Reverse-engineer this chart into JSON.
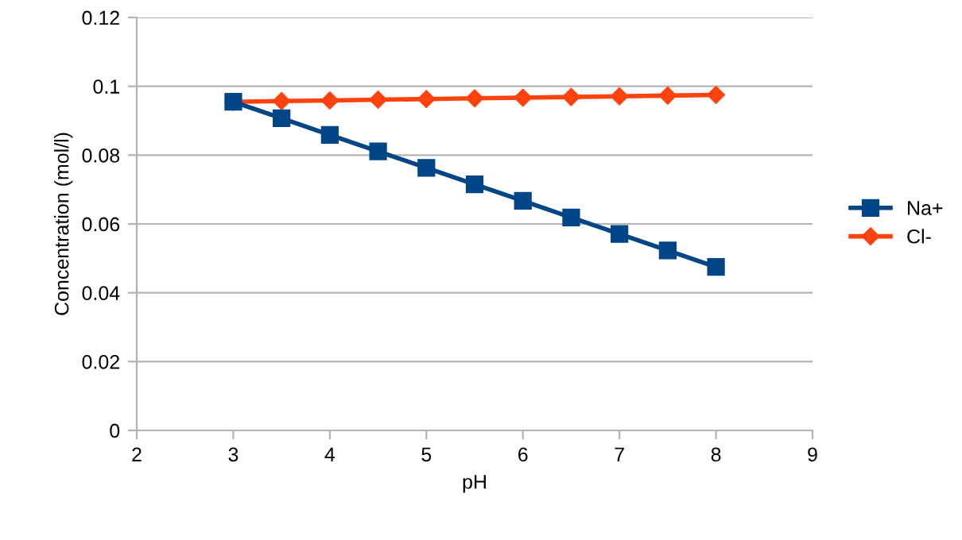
{
  "chart_data": {
    "type": "line",
    "xlabel": "pH",
    "ylabel": "Concentration (mol/l)",
    "x": [
      3,
      3.5,
      4,
      4.5,
      5,
      5.5,
      6,
      6.5,
      7,
      7.5,
      8
    ],
    "series": [
      {
        "name": "Na+",
        "color": "#004586",
        "marker": "square",
        "values": [
          0.0955,
          0.0907,
          0.0859,
          0.0811,
          0.0763,
          0.0715,
          0.0667,
          0.0619,
          0.0571,
          0.0523,
          0.0475
        ]
      },
      {
        "name": "Cl-",
        "color": "#ff420e",
        "marker": "diamond",
        "values": [
          0.0955,
          0.0957,
          0.0959,
          0.0961,
          0.0963,
          0.0965,
          0.0967,
          0.0969,
          0.0971,
          0.0973,
          0.0975
        ]
      }
    ],
    "xlim": [
      2,
      9
    ],
    "xticks": [
      2,
      3,
      4,
      5,
      6,
      7,
      8,
      9
    ],
    "ylim": [
      0,
      0.12
    ],
    "yticks": [
      {
        "value": 0,
        "label": "0"
      },
      {
        "value": 0.02,
        "label": "0.02"
      },
      {
        "value": 0.04,
        "label": "0.04"
      },
      {
        "value": 0.06,
        "label": "0.06"
      },
      {
        "value": 0.08,
        "label": "0.08"
      },
      {
        "value": 0.1,
        "label": "0.1"
      },
      {
        "value": 0.12,
        "label": "0.12"
      }
    ],
    "grid": "y",
    "legend": "right",
    "line_style": "solid"
  }
}
